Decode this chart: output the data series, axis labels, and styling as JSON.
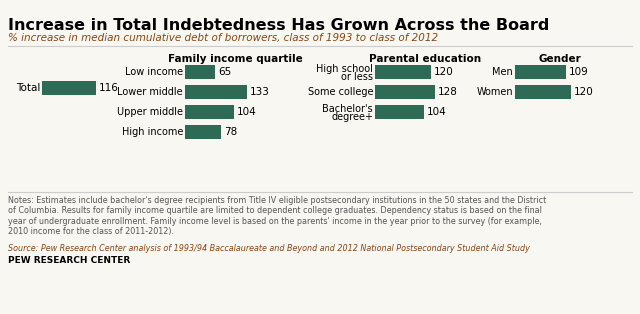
{
  "title": "Increase in Total Indebtedness Has Grown Across the Board",
  "subtitle": "% increase in median cumulative debt of borrowers, class of 1993 to class of 2012",
  "bar_color": "#2d6b56",
  "background_color": "#f9f7f2",
  "total_label": "Total",
  "total_value": 116,
  "family_income": {
    "header": "Family income quartile",
    "categories": [
      "Low income",
      "Lower middle",
      "Upper middle",
      "High income"
    ],
    "values": [
      65,
      133,
      104,
      78
    ]
  },
  "parental_education": {
    "header": "Parental education",
    "categories": [
      "High school\nor less",
      "Some college",
      "Bachelor's\ndegree+"
    ],
    "values": [
      120,
      128,
      104
    ]
  },
  "gender": {
    "header": "Gender",
    "categories": [
      "Men",
      "Women"
    ],
    "values": [
      109,
      120
    ]
  },
  "notes": "Notes: Estimates include bachelor's degree recipients from Title IV eligible postsecondary institutions in the 50 states and the District\nof Columbia. Results for family income quartile are limited to dependent college graduates. Dependency status is based on the final\nyear of undergraduate enrollment. Family income level is based on the parents' income in the year prior to the survey (for example,\n2010 income for the class of 2011-2012).",
  "source": "Source: Pew Research Center analysis of 1993/94 Baccalaureate and Beyond and 2012 National Postsecondary Student Aid Study",
  "footer": "PEW RESEARCH CENTER"
}
